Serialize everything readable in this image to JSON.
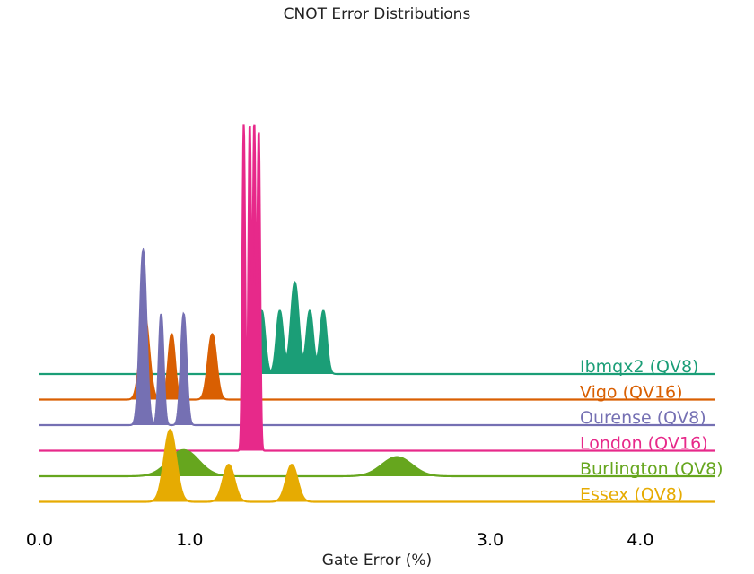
{
  "chart_data": {
    "type": "area",
    "title": "CNOT Error Distributions",
    "xlabel": "Gate Error (%)",
    "ylabel": "",
    "xlim": [
      0,
      4.5
    ],
    "xticks": [
      {
        "value": 0.0,
        "label": "0.0"
      },
      {
        "value": 1.0,
        "label": "1.0"
      },
      {
        "value": 3.0,
        "label": "3.0"
      },
      {
        "value": 4.0,
        "label": "4.0"
      }
    ],
    "grid": false,
    "legend": "right-inline-labels",
    "series": [
      {
        "name": "Ibmqx2 (QV8)",
        "color": "#1b9e77",
        "filled": true,
        "peaks": [
          {
            "center": 1.48,
            "height": 0.29,
            "width": 0.022
          },
          {
            "center": 1.6,
            "height": 0.29,
            "width": 0.022
          },
          {
            "center": 1.7,
            "height": 0.42,
            "width": 0.026
          },
          {
            "center": 1.8,
            "height": 0.29,
            "width": 0.022
          },
          {
            "center": 1.89,
            "height": 0.29,
            "width": 0.022
          }
        ]
      },
      {
        "name": "Vigo (QV16)",
        "color": "#d95f02",
        "filled": true,
        "peaks": [
          {
            "center": 0.7,
            "height": 0.39,
            "width": 0.03
          },
          {
            "center": 0.88,
            "height": 0.3,
            "width": 0.022
          },
          {
            "center": 1.15,
            "height": 0.3,
            "width": 0.028
          }
        ]
      },
      {
        "name": "Ourense (QV8)",
        "color": "#7570b3",
        "filled": true,
        "peaks": [
          {
            "center": 0.69,
            "height": 0.8,
            "width": 0.022
          },
          {
            "center": 0.81,
            "height": 0.51,
            "width": 0.016
          },
          {
            "center": 0.96,
            "height": 0.51,
            "width": 0.019
          }
        ]
      },
      {
        "name": "London (QV16)",
        "color": "#e7298a",
        "filled": true,
        "peaks": [
          {
            "center": 1.36,
            "height": 1.5,
            "width": 0.009
          },
          {
            "center": 1.4,
            "height": 1.5,
            "width": 0.009
          },
          {
            "center": 1.43,
            "height": 1.5,
            "width": 0.009
          },
          {
            "center": 1.46,
            "height": 1.47,
            "width": 0.009
          }
        ]
      },
      {
        "name": "Burlington (QV8)",
        "color": "#66a61e",
        "filled": true,
        "peaks": [
          {
            "center": 0.96,
            "height": 0.12,
            "width": 0.1
          },
          {
            "center": 2.38,
            "height": 0.088,
            "width": 0.1
          }
        ]
      },
      {
        "name": "Essex (QV8)",
        "color": "#e6ab02",
        "filled": true,
        "peaks": [
          {
            "center": 0.87,
            "height": 0.33,
            "width": 0.04
          },
          {
            "center": 1.26,
            "height": 0.17,
            "width": 0.038
          },
          {
            "center": 1.68,
            "height": 0.17,
            "width": 0.038
          }
        ]
      }
    ]
  }
}
